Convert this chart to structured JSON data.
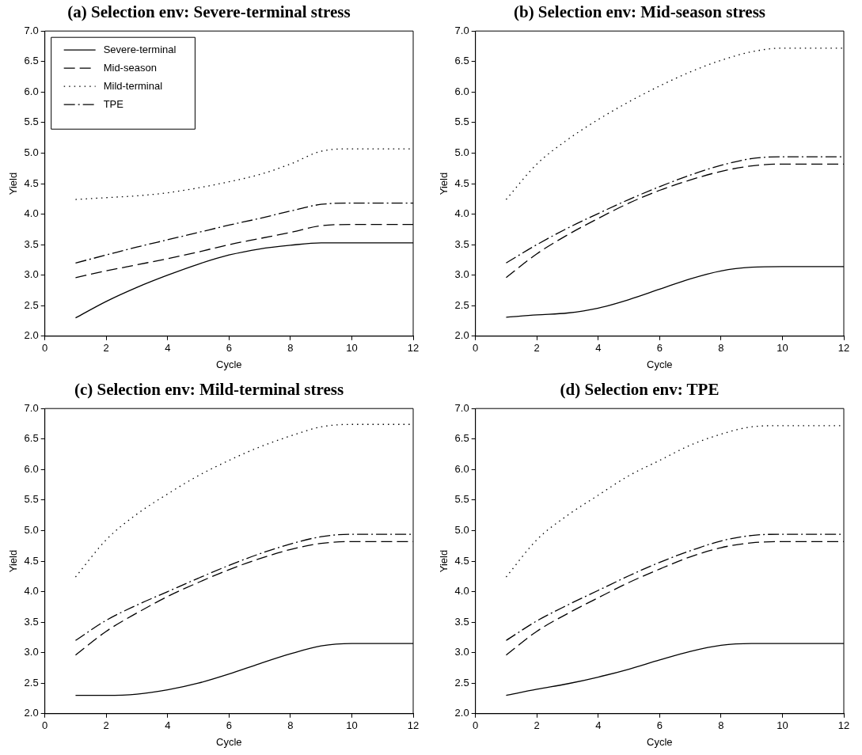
{
  "chart_data": [
    {
      "type": "line",
      "title": "(a) Selection env: Severe-terminal stress",
      "xlabel": "Cycle",
      "ylabel": "Yield",
      "x": [
        1,
        2,
        3,
        4,
        5,
        6,
        7,
        8,
        9,
        10,
        11,
        12
      ],
      "xlim": [
        0,
        12
      ],
      "xticks": [
        0,
        2,
        4,
        6,
        8,
        10,
        12
      ],
      "ylim": [
        2.0,
        7.0
      ],
      "yticks": [
        {
          "value": 2,
          "label": "2.0"
        },
        {
          "value": 2.5,
          "label": "2.5"
        },
        {
          "value": 3,
          "label": "3.0"
        },
        {
          "value": 3.5,
          "label": "3.5"
        },
        {
          "value": 4,
          "label": "4.0"
        },
        {
          "value": 4.5,
          "label": "4.5"
        },
        {
          "value": 5,
          "label": "5.0"
        },
        {
          "value": 5.5,
          "label": "5.5"
        },
        {
          "value": 6,
          "label": "6.0"
        },
        {
          "value": 6.5,
          "label": "6.5"
        },
        {
          "value": 7,
          "label": "7.0"
        }
      ],
      "legend": "top left",
      "marker": "none",
      "series": [
        {
          "name": "Severe-terminal",
          "color": "#000000",
          "line_style": "solid",
          "values": [
            2.3,
            2.57,
            2.8,
            3.0,
            3.18,
            3.33,
            3.43,
            3.49,
            3.53,
            3.53,
            3.53,
            3.53
          ]
        },
        {
          "name": "Mid-season",
          "color": "#000000",
          "line_style": "dashed",
          "values": [
            2.96,
            3.07,
            3.17,
            3.27,
            3.38,
            3.5,
            3.6,
            3.7,
            3.81,
            3.83,
            3.83,
            3.83
          ]
        },
        {
          "name": "Mild-terminal",
          "color": "#000000",
          "line_style": "dotted",
          "values": [
            4.24,
            4.27,
            4.3,
            4.35,
            4.43,
            4.53,
            4.65,
            4.82,
            5.03,
            5.07,
            5.07,
            5.07
          ]
        },
        {
          "name": "TPE",
          "color": "#000000",
          "line_style": "dashdot",
          "values": [
            3.2,
            3.33,
            3.46,
            3.58,
            3.7,
            3.82,
            3.93,
            4.05,
            4.16,
            4.18,
            4.18,
            4.18
          ]
        }
      ]
    },
    {
      "type": "line",
      "title": "(b) Selection env: Mid-season stress",
      "xlabel": "Cycle",
      "ylabel": "Yield",
      "x": [
        1,
        2,
        3,
        4,
        5,
        6,
        7,
        8,
        9,
        10,
        11,
        12
      ],
      "xlim": [
        0,
        12
      ],
      "xticks": [
        0,
        2,
        4,
        6,
        8,
        10,
        12
      ],
      "ylim": [
        2.0,
        7.0
      ],
      "yticks": [
        {
          "value": 2,
          "label": "2.0"
        },
        {
          "value": 2.5,
          "label": "2.5"
        },
        {
          "value": 3,
          "label": "3.0"
        },
        {
          "value": 3.5,
          "label": "3.5"
        },
        {
          "value": 4,
          "label": "4.0"
        },
        {
          "value": 4.5,
          "label": "4.5"
        },
        {
          "value": 5,
          "label": "5.0"
        },
        {
          "value": 5.5,
          "label": "5.5"
        },
        {
          "value": 6,
          "label": "6.0"
        },
        {
          "value": 6.5,
          "label": "6.5"
        },
        {
          "value": 7,
          "label": "7.0"
        }
      ],
      "marker": "none",
      "series": [
        {
          "color": "#000000",
          "line_style": "solid",
          "values": [
            2.31,
            2.35,
            2.38,
            2.46,
            2.6,
            2.77,
            2.94,
            3.07,
            3.13,
            3.14,
            3.14,
            3.14
          ]
        },
        {
          "color": "#000000",
          "line_style": "dashed",
          "values": [
            2.96,
            3.35,
            3.66,
            3.93,
            4.18,
            4.39,
            4.56,
            4.7,
            4.79,
            4.82,
            4.82,
            4.82
          ]
        },
        {
          "color": "#000000",
          "line_style": "dotted",
          "values": [
            4.24,
            4.82,
            5.22,
            5.55,
            5.84,
            6.1,
            6.33,
            6.52,
            6.66,
            6.72,
            6.72,
            6.72
          ]
        },
        {
          "color": "#000000",
          "line_style": "dashdot",
          "values": [
            3.2,
            3.5,
            3.77,
            4.01,
            4.24,
            4.45,
            4.64,
            4.8,
            4.91,
            4.94,
            4.94,
            4.94
          ]
        }
      ]
    },
    {
      "type": "line",
      "title": "(c) Selection env: Mild-terminal stress",
      "xlabel": "Cycle",
      "ylabel": "Yield",
      "x": [
        1,
        2,
        3,
        4,
        5,
        6,
        7,
        8,
        9,
        10,
        11,
        12
      ],
      "xlim": [
        0,
        12
      ],
      "xticks": [
        0,
        2,
        4,
        6,
        8,
        10,
        12
      ],
      "ylim": [
        2.0,
        7.0
      ],
      "yticks": [
        {
          "value": 2,
          "label": "2.0"
        },
        {
          "value": 2.5,
          "label": "2.5"
        },
        {
          "value": 3,
          "label": "3.0"
        },
        {
          "value": 3.5,
          "label": "3.5"
        },
        {
          "value": 4,
          "label": "4.0"
        },
        {
          "value": 4.5,
          "label": "4.5"
        },
        {
          "value": 5,
          "label": "5.0"
        },
        {
          "value": 5.5,
          "label": "5.5"
        },
        {
          "value": 6,
          "label": "6.0"
        },
        {
          "value": 6.5,
          "label": "6.5"
        },
        {
          "value": 7,
          "label": "7.0"
        }
      ],
      "marker": "none",
      "series": [
        {
          "color": "#000000",
          "line_style": "solid",
          "values": [
            2.3,
            2.3,
            2.32,
            2.39,
            2.5,
            2.65,
            2.82,
            2.98,
            3.11,
            3.15,
            3.15,
            3.15
          ]
        },
        {
          "color": "#000000",
          "line_style": "dashed",
          "values": [
            2.96,
            3.35,
            3.65,
            3.92,
            4.15,
            4.36,
            4.54,
            4.69,
            4.79,
            4.82,
            4.82,
            4.82
          ]
        },
        {
          "color": "#000000",
          "line_style": "dotted",
          "values": [
            4.24,
            4.85,
            5.27,
            5.6,
            5.9,
            6.15,
            6.37,
            6.55,
            6.7,
            6.74,
            6.74,
            6.74
          ]
        },
        {
          "color": "#000000",
          "line_style": "dashdot",
          "values": [
            3.2,
            3.53,
            3.78,
            4.0,
            4.22,
            4.43,
            4.62,
            4.78,
            4.9,
            4.94,
            4.94,
            4.94
          ]
        }
      ]
    },
    {
      "type": "line",
      "title": "(d) Selection env: TPE",
      "xlabel": "Cycle",
      "ylabel": "Yield",
      "x": [
        1,
        2,
        3,
        4,
        5,
        6,
        7,
        8,
        9,
        10,
        11,
        12
      ],
      "xlim": [
        0,
        12
      ],
      "xticks": [
        0,
        2,
        4,
        6,
        8,
        10,
        12
      ],
      "ylim": [
        2.0,
        7.0
      ],
      "yticks": [
        {
          "value": 2,
          "label": "2.0"
        },
        {
          "value": 2.5,
          "label": "2.5"
        },
        {
          "value": 3,
          "label": "3.0"
        },
        {
          "value": 3.5,
          "label": "3.5"
        },
        {
          "value": 4,
          "label": "4.0"
        },
        {
          "value": 4.5,
          "label": "4.5"
        },
        {
          "value": 5,
          "label": "5.0"
        },
        {
          "value": 5.5,
          "label": "5.5"
        },
        {
          "value": 6,
          "label": "6.0"
        },
        {
          "value": 6.5,
          "label": "6.5"
        },
        {
          "value": 7,
          "label": "7.0"
        }
      ],
      "marker": "none",
      "series": [
        {
          "color": "#000000",
          "line_style": "solid",
          "values": [
            2.3,
            2.4,
            2.49,
            2.6,
            2.73,
            2.88,
            3.02,
            3.12,
            3.15,
            3.15,
            3.15,
            3.15
          ]
        },
        {
          "color": "#000000",
          "line_style": "dashed",
          "values": [
            2.96,
            3.35,
            3.64,
            3.9,
            4.15,
            4.37,
            4.57,
            4.72,
            4.8,
            4.82,
            4.82,
            4.82
          ]
        },
        {
          "color": "#000000",
          "line_style": "dotted",
          "values": [
            4.24,
            4.85,
            5.25,
            5.58,
            5.9,
            6.15,
            6.4,
            6.58,
            6.7,
            6.72,
            6.72,
            6.72
          ]
        },
        {
          "color": "#000000",
          "line_style": "dashdot",
          "values": [
            3.2,
            3.52,
            3.78,
            4.02,
            4.26,
            4.48,
            4.67,
            4.83,
            4.92,
            4.94,
            4.94,
            4.94
          ]
        }
      ]
    }
  ]
}
